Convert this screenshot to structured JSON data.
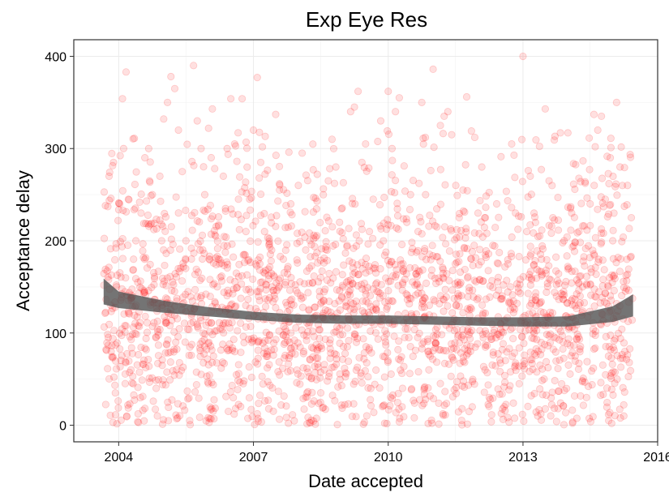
{
  "chart_data": {
    "type": "scatter",
    "title": "Exp Eye Res",
    "xlabel": "Date accepted",
    "ylabel": "Acceptance delay",
    "x_ticks": [
      "2004",
      "2007",
      "2010",
      "2013",
      "2016"
    ],
    "y_ticks": [
      "0",
      "100",
      "200",
      "300",
      "400"
    ],
    "xlim": [
      "2003-01-01",
      "2016-01-01"
    ],
    "ylim": [
      -18,
      418
    ],
    "x_range_data": [
      "2003-09-01",
      "2015-06-15"
    ],
    "grid": true,
    "point_color": "#ff0000",
    "point_alpha": 0.12,
    "smooth_color": "#555555",
    "smooth_band": [
      {
        "x": "2003-09-01",
        "lo": 131,
        "hi": 159
      },
      {
        "x": "2004-01-01",
        "lo": 127,
        "hi": 145
      },
      {
        "x": "2005-01-01",
        "lo": 122,
        "hi": 135
      },
      {
        "x": "2006-01-01",
        "lo": 118,
        "hi": 128
      },
      {
        "x": "2007-01-01",
        "lo": 114,
        "hi": 123
      },
      {
        "x": "2008-01-01",
        "lo": 111,
        "hi": 120
      },
      {
        "x": "2009-01-01",
        "lo": 110,
        "hi": 119
      },
      {
        "x": "2010-01-01",
        "lo": 110,
        "hi": 119
      },
      {
        "x": "2011-01-01",
        "lo": 109,
        "hi": 118
      },
      {
        "x": "2012-01-01",
        "lo": 108,
        "hi": 117
      },
      {
        "x": "2013-01-01",
        "lo": 107,
        "hi": 117
      },
      {
        "x": "2014-01-01",
        "lo": 107,
        "hi": 118
      },
      {
        "x": "2015-01-01",
        "lo": 112,
        "hi": 129
      },
      {
        "x": "2015-06-15",
        "lo": 118,
        "hi": 142
      }
    ],
    "points": [
      {
        "x": "2003-09-20",
        "y": 82
      },
      {
        "x": "2003-10-05",
        "y": 237
      },
      {
        "x": "2003-10-15",
        "y": 270
      },
      {
        "x": "2003-11-01",
        "y": 80
      },
      {
        "x": "2003-11-20",
        "y": 285
      },
      {
        "x": "2003-12-05",
        "y": 35
      },
      {
        "x": "2003-12-15",
        "y": 150
      },
      {
        "x": "2004-01-10",
        "y": 240
      },
      {
        "x": "2004-02-01",
        "y": 354
      },
      {
        "x": "2004-02-10",
        "y": 300
      },
      {
        "x": "2004-03-01",
        "y": 383
      },
      {
        "x": "2004-03-20",
        "y": 245
      },
      {
        "x": "2004-04-10",
        "y": 60
      },
      {
        "x": "2004-05-01",
        "y": 180
      },
      {
        "x": "2004-05-20",
        "y": 200
      },
      {
        "x": "2004-06-10",
        "y": 3
      },
      {
        "x": "2004-07-01",
        "y": 230
      },
      {
        "x": "2004-08-01",
        "y": 290
      },
      {
        "x": "2004-09-01",
        "y": 300
      },
      {
        "x": "2004-10-01",
        "y": 250
      },
      {
        "x": "2004-11-01",
        "y": 40
      },
      {
        "x": "2004-12-01",
        "y": 270
      },
      {
        "x": "2005-01-01",
        "y": 332
      },
      {
        "x": "2005-02-01",
        "y": 350
      },
      {
        "x": "2005-03-01",
        "y": 378
      },
      {
        "x": "2005-04-01",
        "y": 365
      },
      {
        "x": "2005-05-01",
        "y": 320
      },
      {
        "x": "2005-06-01",
        "y": 275
      },
      {
        "x": "2005-07-01",
        "y": 200
      },
      {
        "x": "2005-08-01",
        "y": 5
      },
      {
        "x": "2005-09-01",
        "y": 390
      },
      {
        "x": "2005-10-01",
        "y": 330
      },
      {
        "x": "2005-11-01",
        "y": 300
      },
      {
        "x": "2005-12-01",
        "y": 250
      },
      {
        "x": "2006-01-01",
        "y": 322
      },
      {
        "x": "2006-02-01",
        "y": 343
      },
      {
        "x": "2006-03-01",
        "y": 205
      },
      {
        "x": "2006-04-01",
        "y": 175
      },
      {
        "x": "2006-05-01",
        "y": 270
      },
      {
        "x": "2006-06-01",
        "y": 300
      },
      {
        "x": "2006-07-01",
        "y": 354
      },
      {
        "x": "2006-08-01",
        "y": 305
      },
      {
        "x": "2006-09-01",
        "y": 245
      },
      {
        "x": "2006-10-01",
        "y": 354
      },
      {
        "x": "2006-11-01",
        "y": 210
      },
      {
        "x": "2006-12-01",
        "y": 245
      },
      {
        "x": "2007-01-01",
        "y": 320
      },
      {
        "x": "2007-02-01",
        "y": 377
      },
      {
        "x": "2007-03-01",
        "y": 285
      },
      {
        "x": "2007-04-01",
        "y": 210
      },
      {
        "x": "2007-05-01",
        "y": 27
      },
      {
        "x": "2007-06-01",
        "y": 150
      },
      {
        "x": "2007-07-01",
        "y": 337
      },
      {
        "x": "2007-08-01",
        "y": 255
      },
      {
        "x": "2007-09-01",
        "y": 180
      },
      {
        "x": "2007-10-01",
        "y": 130
      },
      {
        "x": "2007-11-01",
        "y": 240
      },
      {
        "x": "2007-12-01",
        "y": 85
      },
      {
        "x": "2008-01-01",
        "y": 260
      },
      {
        "x": "2008-02-01",
        "y": 295
      },
      {
        "x": "2008-03-01",
        "y": 190
      },
      {
        "x": "2008-04-01",
        "y": 3
      },
      {
        "x": "2008-05-01",
        "y": 277
      },
      {
        "x": "2008-06-01",
        "y": 243
      },
      {
        "x": "2008-07-01",
        "y": 160
      },
      {
        "x": "2008-08-01",
        "y": 60
      },
      {
        "x": "2008-09-01",
        "y": 265
      },
      {
        "x": "2008-10-01",
        "y": 310
      },
      {
        "x": "2008-11-01",
        "y": 280
      },
      {
        "x": "2008-12-01",
        "y": 220
      },
      {
        "x": "2009-01-01",
        "y": 263
      },
      {
        "x": "2009-02-01",
        "y": 195
      },
      {
        "x": "2009-03-01",
        "y": 340
      },
      {
        "x": "2009-04-01",
        "y": 345
      },
      {
        "x": "2009-05-01",
        "y": 362
      },
      {
        "x": "2009-06-01",
        "y": 285
      },
      {
        "x": "2009-07-01",
        "y": 305
      },
      {
        "x": "2009-08-01",
        "y": 210
      },
      {
        "x": "2009-09-01",
        "y": 245
      },
      {
        "x": "2009-10-01",
        "y": 145
      },
      {
        "x": "2009-11-01",
        "y": 330
      },
      {
        "x": "2009-12-01",
        "y": 95
      },
      {
        "x": "2010-01-01",
        "y": 362
      },
      {
        "x": "2010-02-01",
        "y": 300
      },
      {
        "x": "2010-03-01",
        "y": 340
      },
      {
        "x": "2010-04-01",
        "y": 355
      },
      {
        "x": "2010-05-01",
        "y": 175
      },
      {
        "x": "2010-06-01",
        "y": 220
      },
      {
        "x": "2010-07-01",
        "y": 250
      },
      {
        "x": "2010-08-01",
        "y": 8
      },
      {
        "x": "2010-09-01",
        "y": 210
      },
      {
        "x": "2010-10-01",
        "y": 350
      },
      {
        "x": "2010-11-01",
        "y": 250
      },
      {
        "x": "2010-12-01",
        "y": 130
      },
      {
        "x": "2011-01-01",
        "y": 386
      },
      {
        "x": "2011-02-01",
        "y": 215
      },
      {
        "x": "2011-03-01",
        "y": 325
      },
      {
        "x": "2011-04-01",
        "y": 335
      },
      {
        "x": "2011-05-01",
        "y": 340
      },
      {
        "x": "2011-06-01",
        "y": 315
      },
      {
        "x": "2011-07-01",
        "y": 175
      },
      {
        "x": "2011-08-01",
        "y": 225
      },
      {
        "x": "2011-09-01",
        "y": 255
      },
      {
        "x": "2011-10-01",
        "y": 356
      },
      {
        "x": "2011-11-01",
        "y": 80
      },
      {
        "x": "2011-12-01",
        "y": 195
      },
      {
        "x": "2012-01-01",
        "y": 230
      },
      {
        "x": "2012-02-01",
        "y": 280
      },
      {
        "x": "2012-03-01",
        "y": 225
      },
      {
        "x": "2012-04-01",
        "y": 30
      },
      {
        "x": "2012-05-01",
        "y": 195
      },
      {
        "x": "2012-06-01",
        "y": 240
      },
      {
        "x": "2012-07-01",
        "y": 110
      },
      {
        "x": "2012-08-01",
        "y": 20
      },
      {
        "x": "2012-09-01",
        "y": 175
      },
      {
        "x": "2012-10-01",
        "y": 305
      },
      {
        "x": "2012-11-01",
        "y": 230
      },
      {
        "x": "2012-12-01",
        "y": 45
      },
      {
        "x": "2013-01-01",
        "y": 400
      },
      {
        "x": "2013-02-01",
        "y": 210
      },
      {
        "x": "2013-03-01",
        "y": 270
      },
      {
        "x": "2013-04-01",
        "y": 230
      },
      {
        "x": "2013-05-01",
        "y": 10
      },
      {
        "x": "2013-06-01",
        "y": 180
      },
      {
        "x": "2013-07-01",
        "y": 343
      },
      {
        "x": "2013-08-01",
        "y": 265
      },
      {
        "x": "2013-09-01",
        "y": 225
      },
      {
        "x": "2013-10-01",
        "y": 4
      },
      {
        "x": "2013-11-01",
        "y": 317
      },
      {
        "x": "2013-12-01",
        "y": 200
      },
      {
        "x": "2014-01-01",
        "y": 317
      },
      {
        "x": "2014-02-01",
        "y": 230
      },
      {
        "x": "2014-03-01",
        "y": 75
      },
      {
        "x": "2014-04-01",
        "y": 210
      },
      {
        "x": "2014-05-01",
        "y": 150
      },
      {
        "x": "2014-06-01",
        "y": 30
      },
      {
        "x": "2014-07-01",
        "y": 240
      },
      {
        "x": "2014-08-01",
        "y": 337
      },
      {
        "x": "2014-09-01",
        "y": 320
      },
      {
        "x": "2014-10-01",
        "y": 335
      },
      {
        "x": "2014-11-01",
        "y": 245
      },
      {
        "x": "2014-12-01",
        "y": 262
      },
      {
        "x": "2015-01-01",
        "y": 200
      },
      {
        "x": "2015-02-01",
        "y": 350
      },
      {
        "x": "2015-03-01",
        "y": 280
      },
      {
        "x": "2015-04-01",
        "y": 10
      },
      {
        "x": "2015-05-01",
        "y": 260
      },
      {
        "x": "2015-06-01",
        "y": 225
      }
    ]
  }
}
